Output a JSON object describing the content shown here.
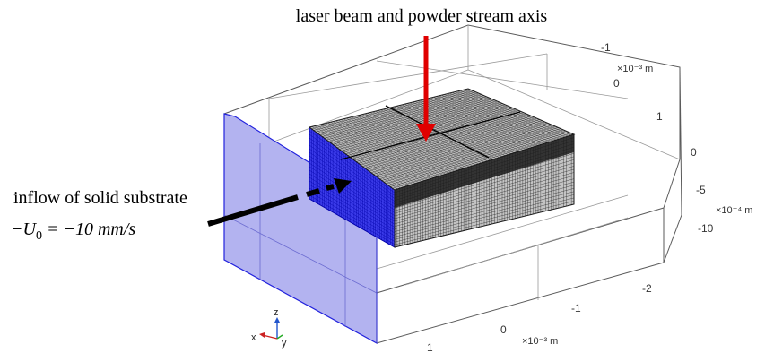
{
  "annotations": {
    "laser_label": "laser beam and powder stream axis",
    "inflow_line1": "inflow of solid substrate",
    "inflow_math_prefix": "−U",
    "inflow_math_sub": "0",
    "inflow_math_rest": " = −10 mm/s"
  },
  "axes": {
    "x_ticks": [
      "1",
      "0",
      "-1",
      "-2"
    ],
    "x_unit": "×10⁻³ m",
    "y_ticks": [
      "-1",
      "0",
      "1"
    ],
    "y_unit": "×10⁻³ m",
    "z_ticks": [
      "0",
      "-5",
      "-10"
    ],
    "z_unit": "×10⁻⁴ m"
  },
  "triad": {
    "z_label": "z",
    "x_label": "x",
    "y_label": "y"
  },
  "colors": {
    "inflow_face": "#b3b3f0",
    "inflow_edge": "#2222dd",
    "laser_arrow": "#e00000",
    "mesh": "#1a1a1a",
    "triad_z": "#2255cc",
    "triad_x": "#cc2222",
    "triad_y": "#22aa22"
  }
}
